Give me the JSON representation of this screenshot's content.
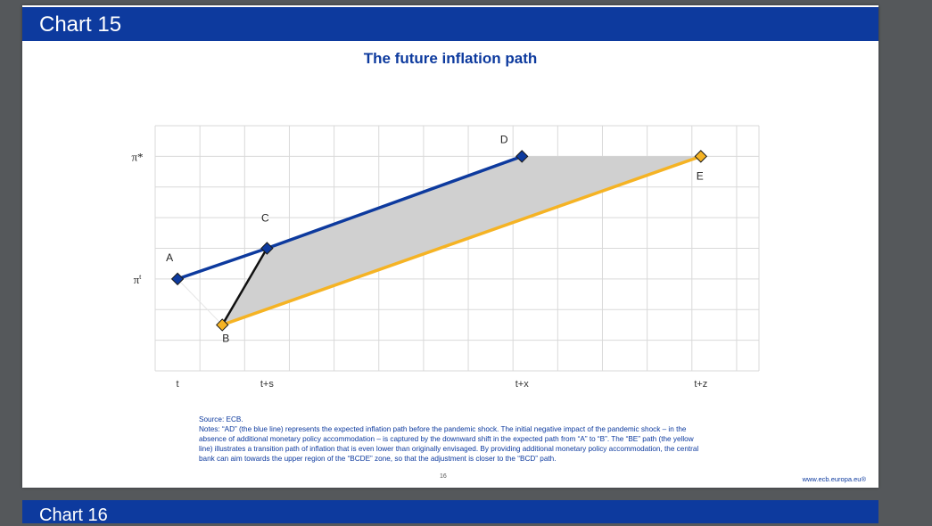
{
  "slide": {
    "header": "Chart 15",
    "title": "The future inflation path",
    "source": "Source: ECB.",
    "notes": "Notes: “AD” (the blue line) represents the expected inflation path before the pandemic shock. The initial negative impact of the pandemic shock – in the absence of additional monetary policy accommodation – is captured by the downward shift in the expected path from “A” to “B”. The “BE” path (the yellow line) illustrates a transition path of inflation that is even lower than originally envisaged. By providing additional monetary policy accommodation, the central bank can aim towards the upper region of the “BCDE” zone, so that the adjustment is closer to the “BCD” path.",
    "page_number": "16",
    "site": "www.ecb.europa.eu®"
  },
  "next_slide": {
    "header": "Chart 16"
  },
  "chart_data": {
    "type": "line",
    "title": "The future inflation path",
    "xlabel": "",
    "ylabel": "",
    "x_ticks": [
      "t",
      "t+s",
      "t+x",
      "t+z"
    ],
    "y_ticks": [
      "π*",
      "πt"
    ],
    "xlim": [
      0,
      13.5
    ],
    "ylim": [
      0,
      8
    ],
    "grid": true,
    "colors": {
      "blue": "#0d3a9e",
      "yellow": "#f5b324",
      "black": "#111111",
      "shade": "#d0d0d0",
      "grid": "#d9d9d9"
    },
    "points": [
      {
        "label": "A",
        "x": 0.5,
        "y": 3.0
      },
      {
        "label": "B",
        "x": 1.5,
        "y": 1.5
      },
      {
        "label": "C",
        "x": 2.5,
        "y": 4.0
      },
      {
        "label": "D",
        "x": 8.2,
        "y": 7.0
      },
      {
        "label": "E",
        "x": 12.2,
        "y": 7.0
      }
    ],
    "series": [
      {
        "points": [
          "A",
          "C",
          "D"
        ],
        "color": "blue"
      },
      {
        "points": [
          "B",
          "E"
        ],
        "color": "yellow"
      },
      {
        "points": [
          "B",
          "C"
        ],
        "color": "black"
      }
    ],
    "shaded_area": [
      "B",
      "C",
      "D",
      "E"
    ]
  }
}
